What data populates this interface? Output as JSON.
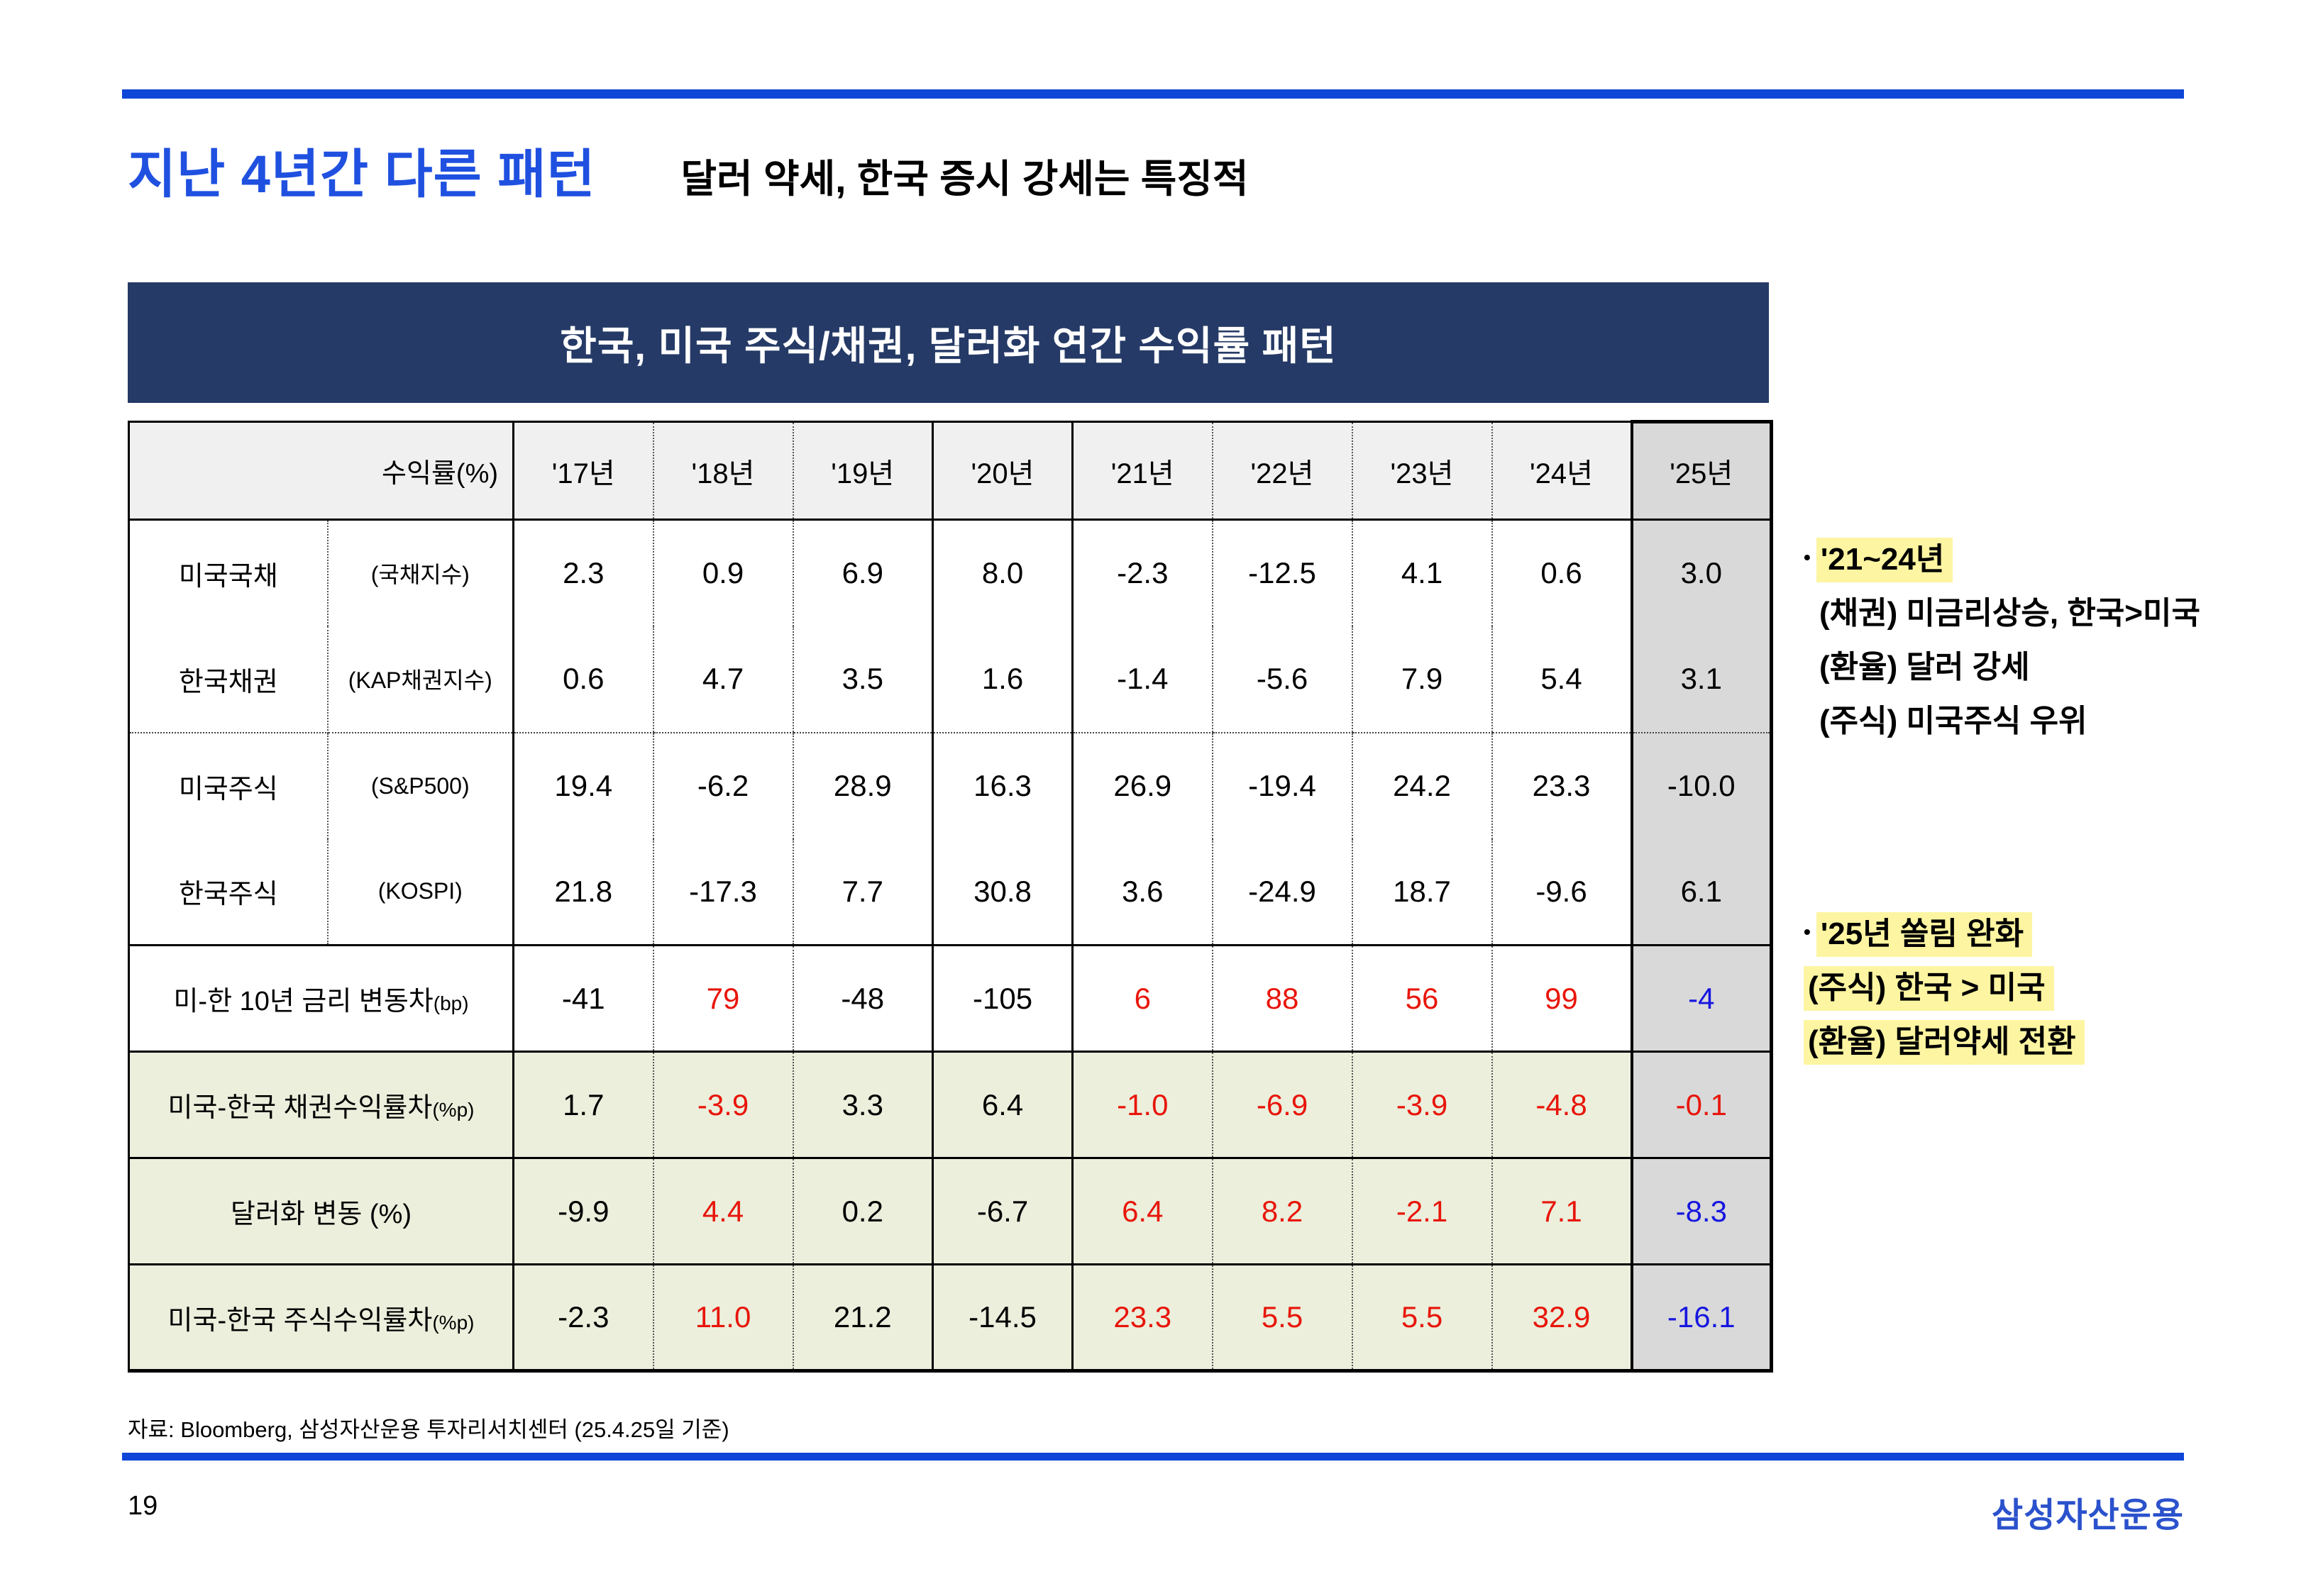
{
  "page": {
    "title": "지난 4년간 다른 패턴",
    "subtitle": "달러 약세, 한국 증시 강세는 특징적",
    "source": "자료: Bloomberg, 삼성자산운용 투자리서치센터 (25.4.25일  기준)",
    "page_number": "19",
    "logo": "삼성자산운용"
  },
  "table": {
    "title": "한국, 미국 주식/채권, 달러화 연간 수익률 패턴",
    "header_label": "수익률(%)",
    "years": [
      "'17년",
      "'18년",
      "'19년",
      "'20년",
      "'21년",
      "'22년",
      "'23년",
      "'24년",
      "'25년"
    ],
    "rows": [
      {
        "label": "미국국채",
        "sublabel": "(국채지수)",
        "suffix": "",
        "span": false,
        "green": false,
        "bottom": "none",
        "values": [
          "2.3",
          "0.9",
          "6.9",
          "8.0",
          "-2.3",
          "-12.5",
          "4.1",
          "0.6",
          "3.0"
        ],
        "colors": [
          "k",
          "k",
          "k",
          "k",
          "k",
          "k",
          "k",
          "k",
          "K"
        ]
      },
      {
        "label": "한국채권",
        "sublabel": "(KAP채권지수)",
        "suffix": "",
        "span": false,
        "green": false,
        "bottom": "dotted",
        "values": [
          "0.6",
          "4.7",
          "3.5",
          "1.6",
          "-1.4",
          "-5.6",
          "7.9",
          "5.4",
          "3.1"
        ],
        "colors": [
          "k",
          "k",
          "k",
          "k",
          "k",
          "k",
          "k",
          "k",
          "K"
        ]
      },
      {
        "label": "미국주식",
        "sublabel": "(S&P500)",
        "suffix": "",
        "span": false,
        "green": false,
        "bottom": "none",
        "values": [
          "19.4",
          "-6.2",
          "28.9",
          "16.3",
          "26.9",
          "-19.4",
          "24.2",
          "23.3",
          "-10.0"
        ],
        "colors": [
          "k",
          "k",
          "k",
          "k",
          "k",
          "k",
          "k",
          "k",
          "K"
        ]
      },
      {
        "label": "한국주식",
        "sublabel": "(KOSPI)",
        "suffix": "",
        "span": false,
        "green": false,
        "bottom": "solid",
        "values": [
          "21.8",
          "-17.3",
          "7.7",
          "30.8",
          "3.6",
          "-24.9",
          "18.7",
          "-9.6",
          "6.1"
        ],
        "colors": [
          "k",
          "k",
          "k",
          "k",
          "k",
          "k",
          "k",
          "k",
          "K"
        ]
      },
      {
        "label": "미-한 10년 금리 변동차",
        "sublabel": "",
        "suffix": "(bp)",
        "span": true,
        "green": false,
        "bottom": "solid",
        "values": [
          "-41",
          "79",
          "-48",
          "-105",
          "6",
          "88",
          "56",
          "99",
          "-4"
        ],
        "colors": [
          "k",
          "r",
          "k",
          "k",
          "r",
          "r",
          "r",
          "r",
          "B"
        ]
      },
      {
        "label": "미국-한국 채권수익률차",
        "sublabel": "",
        "suffix": "(%p)",
        "span": true,
        "green": true,
        "bottom": "solid",
        "values": [
          "1.7",
          "-3.9",
          "3.3",
          "6.4",
          "-1.0",
          "-6.9",
          "-3.9",
          "-4.8",
          "-0.1"
        ],
        "colors": [
          "k",
          "R",
          "k",
          "k",
          "R",
          "R",
          "R",
          "R",
          "R"
        ]
      },
      {
        "label": "달러화 변동 (%)",
        "sublabel": "",
        "suffix": "",
        "span": true,
        "green": true,
        "bottom": "solid",
        "values": [
          "-9.9",
          "4.4",
          "0.2",
          "-6.7",
          "6.4",
          "8.2",
          "-2.1",
          "7.1",
          "-8.3"
        ],
        "colors": [
          "k",
          "R",
          "k",
          "k",
          "R",
          "R",
          "R",
          "R",
          "B"
        ]
      },
      {
        "label": "미국-한국 주식수익률차",
        "sublabel": "",
        "suffix": "(%p)",
        "span": true,
        "green": true,
        "bottom": "none",
        "values": [
          "-2.3",
          "11.0",
          "21.2",
          "-14.5",
          "23.3",
          "5.5",
          "5.5",
          "32.9",
          "-16.1"
        ],
        "colors": [
          "k",
          "R",
          "k",
          "k",
          "R",
          "R",
          "R",
          "R",
          "B"
        ]
      }
    ]
  },
  "annotations": {
    "block1": {
      "bullet": "•",
      "highlight": "'21~24년",
      "lines": [
        "(채권) 미금리상승, 한국>미국",
        "(환율) 달러 강세",
        "(주식) 미국주식 우위"
      ]
    },
    "block2": {
      "bullet": "•",
      "lines": [
        "'25년 쏠림 완화",
        "(주식) 한국 > 미국",
        "(환율) 달러약세 전환"
      ]
    }
  },
  "colors": {
    "navy": "#253a66",
    "green": "#ebefdc",
    "gray": "#d9d9d9",
    "red": "#e8150a",
    "blue": "#1616e0",
    "hl": "#fdf5a1",
    "accent": "#0e46d8",
    "title_blue": "#1f50e0",
    "logo_blue": "#2b52cc"
  }
}
